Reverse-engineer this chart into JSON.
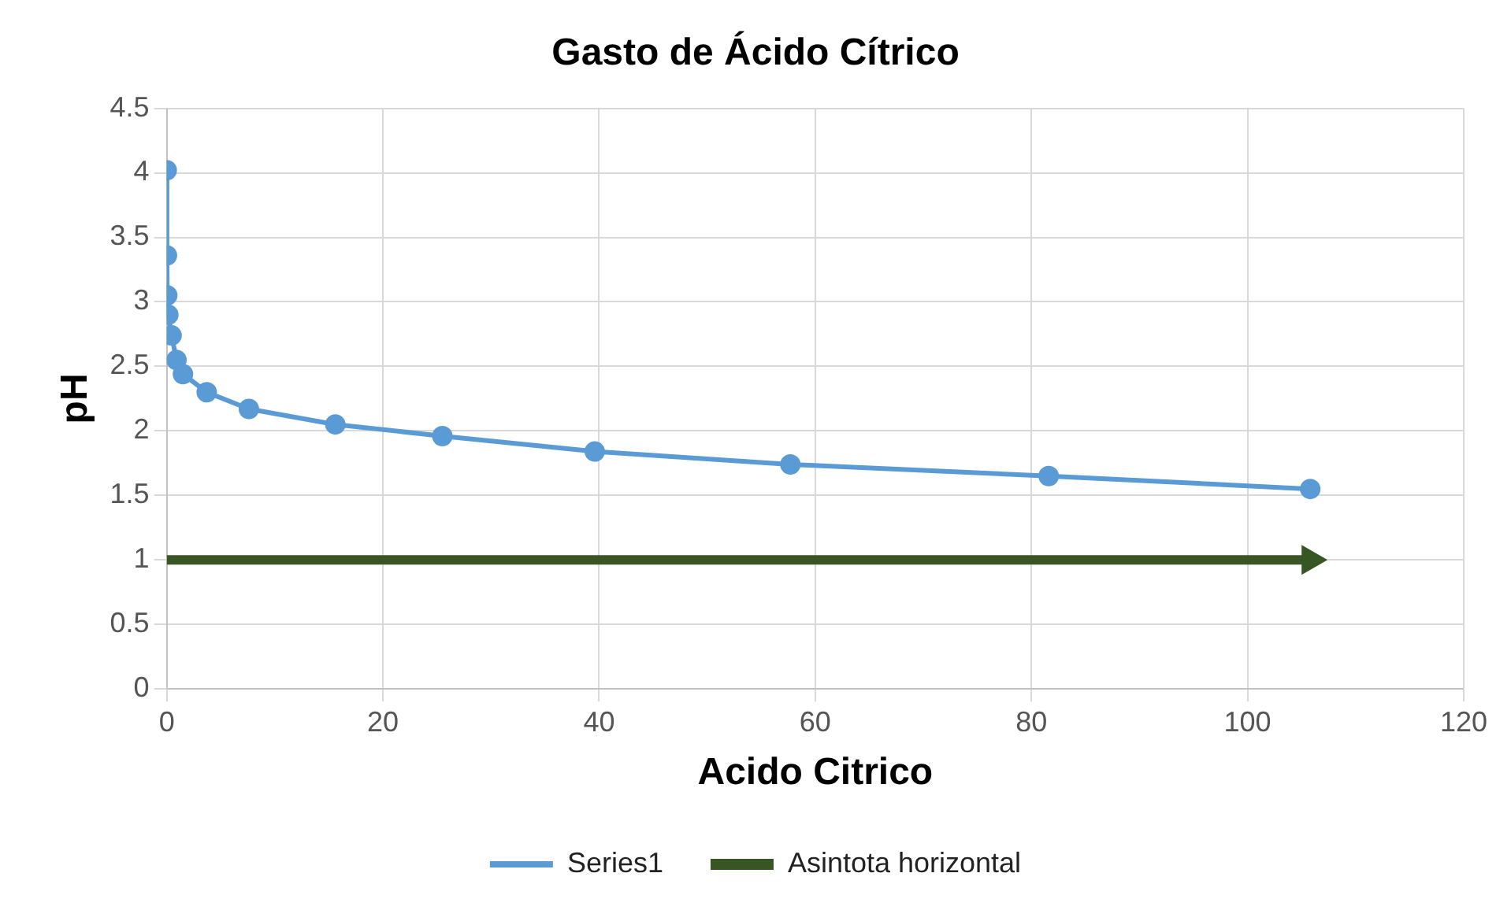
{
  "chart_data": {
    "type": "line",
    "title": "Gasto de Ácido Cítrico",
    "xlabel": "Acido Citrico",
    "ylabel": "pH",
    "xlim": [
      0,
      120
    ],
    "xticks": [
      0,
      20,
      40,
      60,
      80,
      100,
      120
    ],
    "ylim": [
      0,
      4.5
    ],
    "yticks": [
      0,
      0.5,
      1,
      1.5,
      2,
      2.5,
      3,
      3.5,
      4,
      4.5
    ],
    "grid": true,
    "legend": "bottom",
    "series": [
      {
        "name": "Series1",
        "color": "#5b9bd5",
        "marker": "circle",
        "x": [
          0,
          0.02,
          0.05,
          0.15,
          0.45,
          0.9,
          1.5,
          3.7,
          7.6,
          15.6,
          25.5,
          39.6,
          57.7,
          81.6,
          105.8
        ],
        "values": [
          4.02,
          3.36,
          3.05,
          2.9,
          2.74,
          2.55,
          2.44,
          2.3,
          2.17,
          2.05,
          1.96,
          1.84,
          1.74,
          1.65,
          1.55
        ]
      },
      {
        "name": "Asintota horizontal",
        "color": "#375623",
        "marker": "triangle",
        "x": [
          0,
          105.8
        ],
        "values": [
          1,
          1
        ]
      }
    ]
  }
}
